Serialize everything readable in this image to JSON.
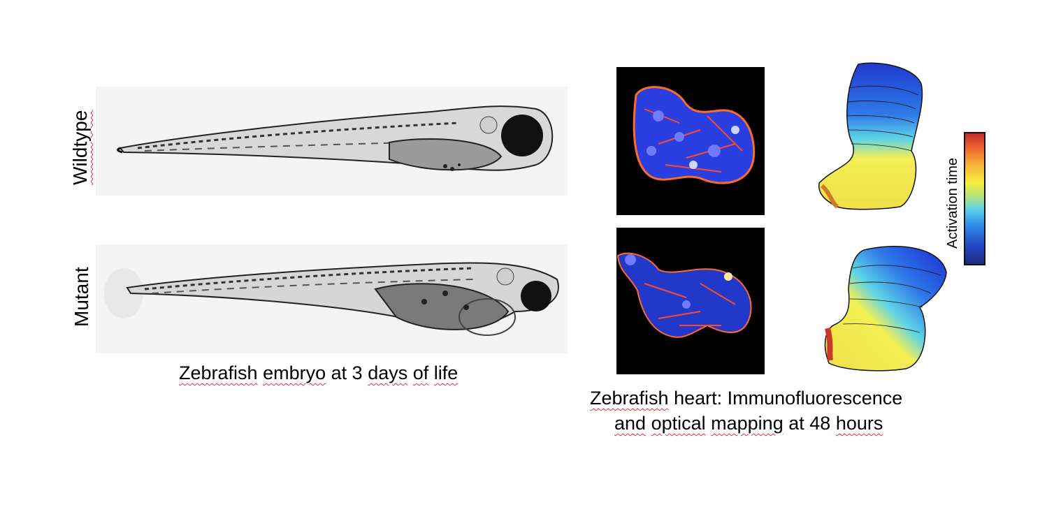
{
  "labels": {
    "wildtype": "Wildtype",
    "mutant": "Mutant"
  },
  "captions": {
    "embryo_line1_a": "Zebrafish",
    "embryo_line1_b": "embryo",
    "embryo_line1_c": "at 3",
    "embryo_line1_d": "days",
    "embryo_line1_e": "of",
    "embryo_line1_f": "life",
    "heart_line1_a": "Zebrafish",
    "heart_line1_b": "heart: Immunofluorescence",
    "heart_line2_a": "and",
    "heart_line2_b": "optical",
    "heart_line2_c": "mapping",
    "heart_line2_d": "at 48",
    "heart_line2_e": "hours"
  },
  "colorbar": {
    "label": "Activation time",
    "colors": [
      "#1f2a7a",
      "#2f8ee8",
      "#f5ee3d",
      "#c8292a"
    ]
  }
}
